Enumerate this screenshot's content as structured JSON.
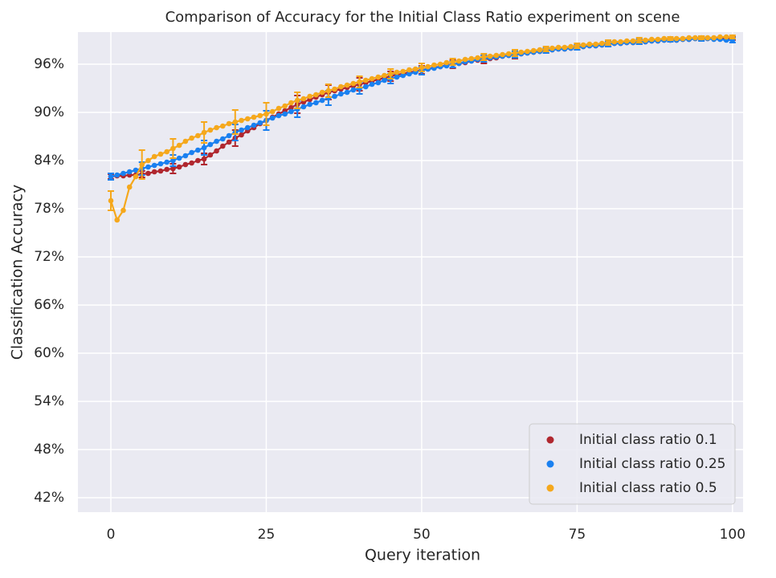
{
  "chart_data": {
    "type": "line",
    "title": "Comparison of Accuracy for the Initial Class Ratio experiment on scene",
    "x_label": "Query iteration",
    "y_label": "Classification Accuracy",
    "x": [
      0,
      1,
      2,
      3,
      4,
      5,
      6,
      7,
      8,
      9,
      10,
      11,
      12,
      13,
      14,
      15,
      16,
      17,
      18,
      19,
      20,
      21,
      22,
      23,
      24,
      25,
      26,
      27,
      28,
      29,
      30,
      31,
      32,
      33,
      34,
      35,
      36,
      37,
      38,
      39,
      40,
      41,
      42,
      43,
      44,
      45,
      46,
      47,
      48,
      49,
      50,
      51,
      52,
      53,
      54,
      55,
      56,
      57,
      58,
      59,
      60,
      61,
      62,
      63,
      64,
      65,
      66,
      67,
      68,
      69,
      70,
      71,
      72,
      73,
      74,
      75,
      76,
      77,
      78,
      79,
      80,
      81,
      82,
      83,
      84,
      85,
      86,
      87,
      88,
      89,
      90,
      91,
      92,
      93,
      94,
      95,
      96,
      97,
      98,
      99,
      100
    ],
    "error_x": [
      0,
      5,
      10,
      15,
      20,
      25,
      30,
      35,
      40,
      45,
      50,
      55,
      60,
      65,
      70,
      75,
      80,
      85,
      90,
      95,
      100
    ],
    "series": [
      {
        "name": "Initial class ratio 0.1",
        "color": "#b0272f",
        "values": [
          82.0,
          82.1,
          82.1,
          82.2,
          82.2,
          82.3,
          82.4,
          82.6,
          82.7,
          82.9,
          83.0,
          83.2,
          83.5,
          83.7,
          84.0,
          84.2,
          84.7,
          85.2,
          85.8,
          86.3,
          86.8,
          87.2,
          87.7,
          88.1,
          88.6,
          89.0,
          89.4,
          89.8,
          90.2,
          90.6,
          91.0,
          91.3,
          91.6,
          91.9,
          92.2,
          92.5,
          92.7,
          92.9,
          93.1,
          93.3,
          93.5,
          93.7,
          93.9,
          94.1,
          94.3,
          94.5,
          94.7,
          94.8,
          95.0,
          95.1,
          95.3,
          95.4,
          95.6,
          95.7,
          95.9,
          96.0,
          96.1,
          96.2,
          96.4,
          96.5,
          96.6,
          96.7,
          96.8,
          97.0,
          97.1,
          97.2,
          97.3,
          97.4,
          97.5,
          97.6,
          97.7,
          97.8,
          97.9,
          97.9,
          98.0,
          98.1,
          98.2,
          98.3,
          98.3,
          98.4,
          98.5,
          98.6,
          98.6,
          98.7,
          98.7,
          98.8,
          98.8,
          98.9,
          98.9,
          99.0,
          99.0,
          99.0,
          99.1,
          99.1,
          99.2,
          99.2,
          99.2,
          99.2,
          99.2,
          99.2,
          99.2
        ],
        "errors": [
          0.3,
          0.4,
          0.6,
          0.7,
          1.0,
          1.2,
          1.1,
          0.9,
          0.8,
          0.6,
          0.5,
          0.5,
          0.5,
          0.5,
          0.3,
          0.3,
          0.3,
          0.3,
          0.2,
          0.2,
          0.2
        ]
      },
      {
        "name": "Initial class ratio 0.25",
        "color": "#1a80f0",
        "values": [
          82.0,
          82.2,
          82.4,
          82.6,
          82.8,
          83.0,
          83.2,
          83.4,
          83.6,
          83.8,
          84.0,
          84.3,
          84.6,
          85.0,
          85.3,
          85.6,
          86.0,
          86.4,
          86.7,
          87.1,
          87.5,
          87.8,
          88.1,
          88.4,
          88.7,
          89.0,
          89.3,
          89.6,
          89.8,
          90.1,
          90.4,
          90.7,
          91.0,
          91.2,
          91.5,
          91.8,
          92.0,
          92.3,
          92.5,
          92.8,
          93.0,
          93.2,
          93.5,
          93.7,
          94.0,
          94.2,
          94.4,
          94.6,
          94.8,
          95.0,
          95.2,
          95.4,
          95.5,
          95.7,
          95.8,
          96.0,
          96.1,
          96.3,
          96.4,
          96.6,
          96.7,
          96.8,
          96.9,
          97.0,
          97.1,
          97.2,
          97.3,
          97.4,
          97.5,
          97.6,
          97.7,
          97.8,
          97.9,
          97.9,
          98.0,
          98.1,
          98.2,
          98.3,
          98.3,
          98.4,
          98.5,
          98.6,
          98.6,
          98.7,
          98.7,
          98.8,
          98.8,
          98.9,
          98.9,
          99.0,
          99.0,
          99.0,
          99.1,
          99.1,
          99.2,
          99.2,
          99.2,
          99.1,
          99.1,
          99.0,
          99.0
        ],
        "errors": [
          0.4,
          0.8,
          0.7,
          0.9,
          1.0,
          1.2,
          1.0,
          0.9,
          0.7,
          0.6,
          0.5,
          0.4,
          0.4,
          0.4,
          0.3,
          0.3,
          0.3,
          0.3,
          0.2,
          0.3,
          0.3
        ]
      },
      {
        "name": "Initial class ratio 0.5",
        "color": "#f5a81c",
        "values": [
          79.0,
          76.6,
          77.8,
          80.7,
          82.0,
          83.5,
          84.0,
          84.5,
          84.8,
          85.1,
          85.5,
          85.9,
          86.4,
          86.8,
          87.1,
          87.5,
          87.8,
          88.1,
          88.3,
          88.6,
          88.8,
          89.0,
          89.2,
          89.4,
          89.6,
          89.8,
          90.1,
          90.5,
          90.8,
          91.2,
          91.5,
          91.7,
          92.0,
          92.2,
          92.5,
          92.7,
          92.9,
          93.2,
          93.4,
          93.6,
          93.8,
          94.0,
          94.2,
          94.4,
          94.6,
          94.8,
          95.0,
          95.1,
          95.3,
          95.4,
          95.6,
          95.7,
          95.9,
          96.0,
          96.2,
          96.3,
          96.4,
          96.6,
          96.7,
          96.8,
          96.9,
          97.0,
          97.1,
          97.2,
          97.3,
          97.4,
          97.5,
          97.6,
          97.7,
          97.8,
          97.9,
          98.0,
          98.1,
          98.1,
          98.2,
          98.3,
          98.4,
          98.5,
          98.5,
          98.6,
          98.7,
          98.8,
          98.8,
          98.9,
          98.9,
          99.0,
          99.0,
          99.1,
          99.1,
          99.2,
          99.2,
          99.2,
          99.2,
          99.3,
          99.3,
          99.3,
          99.3,
          99.3,
          99.4,
          99.4,
          99.4
        ],
        "errors": [
          1.2,
          1.8,
          1.2,
          1.3,
          1.5,
          1.4,
          1.0,
          0.8,
          0.7,
          0.6,
          0.5,
          0.4,
          0.4,
          0.4,
          0.3,
          0.3,
          0.3,
          0.3,
          0.2,
          0.2,
          0.2
        ]
      }
    ],
    "xlim": [
      -5.3,
      101.7
    ],
    "ylim": [
      40.2,
      100
    ],
    "xticks": [
      0,
      25,
      50,
      75,
      100
    ],
    "yticks": [
      {
        "value": 42,
        "label": "42%"
      },
      {
        "value": 48,
        "label": "48%"
      },
      {
        "value": 54,
        "label": "54%"
      },
      {
        "value": 60,
        "label": "60%"
      },
      {
        "value": 66,
        "label": "66%"
      },
      {
        "value": 72,
        "label": "72%"
      },
      {
        "value": 78,
        "label": "78%"
      },
      {
        "value": 84,
        "label": "84%"
      },
      {
        "value": 90,
        "label": "90%"
      },
      {
        "value": 96,
        "label": "96%"
      }
    ],
    "grid": true,
    "legend": "lower right"
  }
}
